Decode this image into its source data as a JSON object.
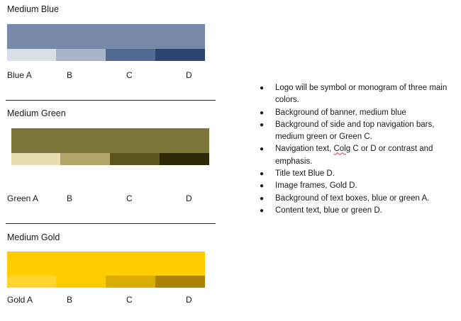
{
  "sections": {
    "blue": {
      "title": "Medium Blue",
      "main_color": "#7888a8",
      "shades": [
        {
          "label": "Blue A",
          "color": "#d8dee6"
        },
        {
          "label": "B",
          "color": "#a8b4c8"
        },
        {
          "label": "C",
          "color": "#526a92"
        },
        {
          "label": "D",
          "color": "#2c4270"
        }
      ]
    },
    "green": {
      "title": "Medium Green",
      "main_color": "#7a7538",
      "shades": [
        {
          "label": "Green A",
          "color": "#e6deb0"
        },
        {
          "label": "B",
          "color": "#b0a66a"
        },
        {
          "label": "C",
          "color": "#5c561e"
        },
        {
          "label": "D",
          "color": "#2e2a08"
        }
      ]
    },
    "gold": {
      "title": "Medium Gold",
      "main_color": "#ffcc00",
      "shades": [
        {
          "label": "Gold A",
          "color": "#ffd42e"
        },
        {
          "label": "B",
          "color": "#ffcc00"
        },
        {
          "label": "C",
          "color": "#d8ac00"
        },
        {
          "label": "D",
          "color": "#a88200"
        }
      ]
    }
  },
  "notes": [
    "Logo will be symbol or monogram of three main colors.",
    "Background of banner, medium blue",
    "Background of side and top navigation bars, medium green or Green C.",
    "Navigation text, Colg C or D or contrast and emphasis.",
    "Title text Blue D.",
    "Image frames, Gold D.",
    "Background of text boxes, blue or green A.",
    "Content text, blue or green D."
  ]
}
